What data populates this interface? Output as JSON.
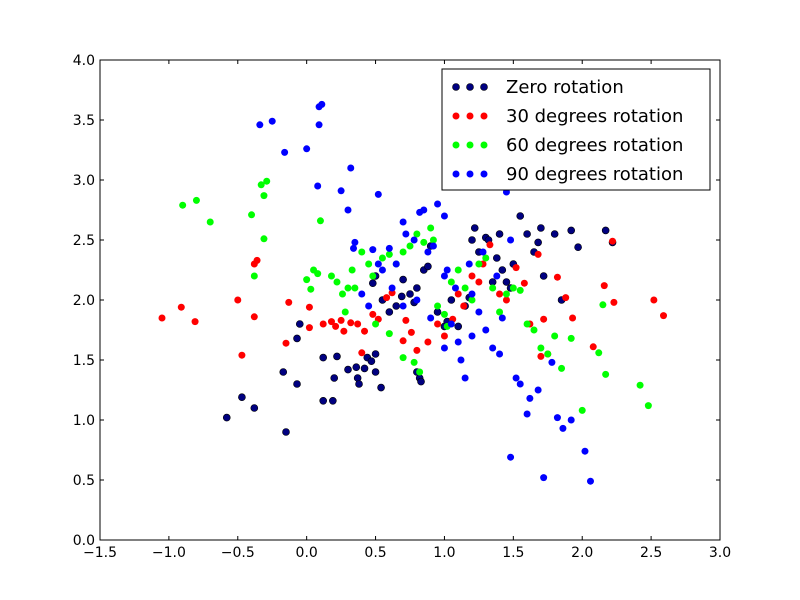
{
  "chart_data": {
    "type": "scatter",
    "title": "",
    "xlabel": "",
    "ylabel": "",
    "xlim": [
      -1.5,
      3.0
    ],
    "ylim": [
      0.0,
      4.0
    ],
    "xticks": [
      "−1.5",
      "−1.0",
      "−0.5",
      "0.0",
      "0.5",
      "1.0",
      "1.5",
      "2.0",
      "2.5",
      "3.0"
    ],
    "yticks": [
      "0.0",
      "0.5",
      "1.0",
      "1.5",
      "2.0",
      "2.5",
      "3.0",
      "3.5",
      "4.0"
    ],
    "grid": false,
    "legend_position": "top-right",
    "series": [
      {
        "name": "Zero rotation",
        "color": "#000080",
        "points": [
          [
            -0.58,
            1.02
          ],
          [
            -0.47,
            1.19
          ],
          [
            -0.38,
            1.1
          ],
          [
            -0.15,
            0.9
          ],
          [
            -0.17,
            1.4
          ],
          [
            -0.07,
            1.3
          ],
          [
            -0.07,
            1.68
          ],
          [
            -0.05,
            1.8
          ],
          [
            0.12,
            1.16
          ],
          [
            0.19,
            1.16
          ],
          [
            0.12,
            1.52
          ],
          [
            0.2,
            1.35
          ],
          [
            0.22,
            1.53
          ],
          [
            0.3,
            1.42
          ],
          [
            0.36,
            1.44
          ],
          [
            0.37,
            1.35
          ],
          [
            0.38,
            1.3
          ],
          [
            0.42,
            1.43
          ],
          [
            0.44,
            1.52
          ],
          [
            0.47,
            1.49
          ],
          [
            0.5,
            1.55
          ],
          [
            0.5,
            1.4
          ],
          [
            0.54,
            1.27
          ],
          [
            0.48,
            2.14
          ],
          [
            0.5,
            2.2
          ],
          [
            0.55,
            2.0
          ],
          [
            0.6,
            1.9
          ],
          [
            0.65,
            1.95
          ],
          [
            0.69,
            2.03
          ],
          [
            0.7,
            2.17
          ],
          [
            0.75,
            2.05
          ],
          [
            0.78,
            1.98
          ],
          [
            0.8,
            2.1
          ],
          [
            0.8,
            1.4
          ],
          [
            0.82,
            1.35
          ],
          [
            0.83,
            1.32
          ],
          [
            0.85,
            2.25
          ],
          [
            0.88,
            2.28
          ],
          [
            0.9,
            2.45
          ],
          [
            0.95,
            1.9
          ],
          [
            1.0,
            1.78
          ],
          [
            1.02,
            1.82
          ],
          [
            1.05,
            2.0
          ],
          [
            1.1,
            1.78
          ],
          [
            1.15,
            1.95
          ],
          [
            1.18,
            2.02
          ],
          [
            1.2,
            2.5
          ],
          [
            1.22,
            2.6
          ],
          [
            1.25,
            2.4
          ],
          [
            1.3,
            2.52
          ],
          [
            1.32,
            2.5
          ],
          [
            1.35,
            2.15
          ],
          [
            1.38,
            2.35
          ],
          [
            1.4,
            2.55
          ],
          [
            1.42,
            2.25
          ],
          [
            1.45,
            2.15
          ],
          [
            1.48,
            2.1
          ],
          [
            1.5,
            2.3
          ],
          [
            1.55,
            2.7
          ],
          [
            1.6,
            2.55
          ],
          [
            1.65,
            2.4
          ],
          [
            1.68,
            2.48
          ],
          [
            1.7,
            2.6
          ],
          [
            1.72,
            2.2
          ],
          [
            1.8,
            2.55
          ],
          [
            1.85,
            2.0
          ],
          [
            1.92,
            2.58
          ],
          [
            1.97,
            2.44
          ],
          [
            2.17,
            2.58
          ],
          [
            2.22,
            2.48
          ]
        ]
      },
      {
        "name": "30 degrees rotation",
        "color": "#ff0000",
        "points": [
          [
            -1.05,
            1.85
          ],
          [
            -0.91,
            1.94
          ],
          [
            -0.81,
            1.82
          ],
          [
            -0.5,
            2.0
          ],
          [
            -0.47,
            1.54
          ],
          [
            -0.38,
            1.86
          ],
          [
            -0.38,
            2.3
          ],
          [
            -0.36,
            2.33
          ],
          [
            -0.15,
            1.64
          ],
          [
            -0.13,
            1.98
          ],
          [
            0.02,
            1.94
          ],
          [
            0.02,
            1.77
          ],
          [
            0.12,
            1.8
          ],
          [
            0.18,
            1.82
          ],
          [
            0.21,
            1.78
          ],
          [
            0.25,
            1.83
          ],
          [
            0.27,
            1.74
          ],
          [
            0.32,
            1.81
          ],
          [
            0.37,
            1.8
          ],
          [
            0.4,
            1.56
          ],
          [
            0.42,
            1.74
          ],
          [
            0.48,
            1.88
          ],
          [
            0.52,
            1.84
          ],
          [
            0.58,
            2.02
          ],
          [
            0.62,
            2.06
          ],
          [
            0.7,
            1.66
          ],
          [
            0.72,
            1.83
          ],
          [
            0.76,
            1.73
          ],
          [
            0.8,
            1.58
          ],
          [
            0.88,
            1.65
          ],
          [
            0.95,
            1.8
          ],
          [
            1.0,
            1.7
          ],
          [
            1.06,
            1.84
          ],
          [
            1.1,
            2.05
          ],
          [
            1.14,
            1.95
          ],
          [
            1.2,
            2.2
          ],
          [
            1.25,
            2.15
          ],
          [
            1.28,
            2.3
          ],
          [
            1.33,
            2.46
          ],
          [
            1.4,
            2.05
          ],
          [
            1.45,
            2.0
          ],
          [
            1.52,
            2.27
          ],
          [
            1.58,
            2.14
          ],
          [
            1.62,
            1.8
          ],
          [
            1.68,
            2.38
          ],
          [
            1.72,
            1.84
          ],
          [
            1.75,
            1.55
          ],
          [
            1.82,
            2.19
          ],
          [
            1.88,
            2.02
          ],
          [
            1.93,
            1.85
          ],
          [
            2.08,
            1.61
          ],
          [
            2.16,
            2.12
          ],
          [
            2.22,
            2.49
          ],
          [
            2.23,
            1.98
          ],
          [
            2.52,
            2.0
          ],
          [
            2.59,
            1.87
          ],
          [
            1.7,
            1.53
          ]
        ]
      },
      {
        "name": "60 degrees rotation",
        "color": "#00ff00",
        "points": [
          [
            -0.9,
            2.79
          ],
          [
            -0.8,
            2.83
          ],
          [
            -0.7,
            2.65
          ],
          [
            -0.4,
            2.71
          ],
          [
            -0.33,
            2.96
          ],
          [
            -0.29,
            2.99
          ],
          [
            -0.31,
            2.87
          ],
          [
            -0.31,
            2.51
          ],
          [
            -0.38,
            2.2
          ],
          [
            0.0,
            2.17
          ],
          [
            0.03,
            2.09
          ],
          [
            0.05,
            2.25
          ],
          [
            0.08,
            2.22
          ],
          [
            0.1,
            2.66
          ],
          [
            0.18,
            2.2
          ],
          [
            0.22,
            2.15
          ],
          [
            0.26,
            2.05
          ],
          [
            0.28,
            1.9
          ],
          [
            0.3,
            2.1
          ],
          [
            0.33,
            2.25
          ],
          [
            0.35,
            2.1
          ],
          [
            0.4,
            2.4
          ],
          [
            0.45,
            2.3
          ],
          [
            0.48,
            2.2
          ],
          [
            0.55,
            2.35
          ],
          [
            0.6,
            2.38
          ],
          [
            0.65,
            2.3
          ],
          [
            0.7,
            2.4
          ],
          [
            0.75,
            2.45
          ],
          [
            0.8,
            2.55
          ],
          [
            0.85,
            2.48
          ],
          [
            0.9,
            2.6
          ],
          [
            0.92,
            2.5
          ],
          [
            0.95,
            1.95
          ],
          [
            1.0,
            1.88
          ],
          [
            1.02,
            1.78
          ],
          [
            1.05,
            2.15
          ],
          [
            1.1,
            2.25
          ],
          [
            1.15,
            2.1
          ],
          [
            1.2,
            2.0
          ],
          [
            1.25,
            2.3
          ],
          [
            1.3,
            2.35
          ],
          [
            1.35,
            2.1
          ],
          [
            1.4,
            1.9
          ],
          [
            1.45,
            2.05
          ],
          [
            1.5,
            2.1
          ],
          [
            1.55,
            2.08
          ],
          [
            1.6,
            1.8
          ],
          [
            1.65,
            1.75
          ],
          [
            1.7,
            1.6
          ],
          [
            1.75,
            1.55
          ],
          [
            1.8,
            1.7
          ],
          [
            1.85,
            1.43
          ],
          [
            1.92,
            1.68
          ],
          [
            2.0,
            1.08
          ],
          [
            2.12,
            1.56
          ],
          [
            2.15,
            1.96
          ],
          [
            2.17,
            1.38
          ],
          [
            2.42,
            1.29
          ],
          [
            2.48,
            1.12
          ],
          [
            0.7,
            1.52
          ],
          [
            0.78,
            1.48
          ],
          [
            0.82,
            1.4
          ],
          [
            0.6,
            1.72
          ],
          [
            0.5,
            1.8
          ]
        ]
      },
      {
        "name": "90 degrees rotation",
        "color": "#0000ff",
        "points": [
          [
            -0.34,
            3.46
          ],
          [
            -0.25,
            3.49
          ],
          [
            -0.16,
            3.23
          ],
          [
            0.0,
            3.26
          ],
          [
            0.09,
            3.61
          ],
          [
            0.11,
            3.63
          ],
          [
            0.09,
            3.46
          ],
          [
            0.08,
            2.95
          ],
          [
            0.25,
            2.91
          ],
          [
            0.32,
            3.1
          ],
          [
            0.3,
            2.75
          ],
          [
            0.34,
            2.43
          ],
          [
            0.35,
            2.48
          ],
          [
            0.52,
            2.88
          ],
          [
            0.48,
            2.42
          ],
          [
            0.52,
            2.3
          ],
          [
            0.55,
            2.25
          ],
          [
            0.6,
            2.43
          ],
          [
            0.62,
            2.1
          ],
          [
            0.65,
            2.3
          ],
          [
            0.7,
            2.65
          ],
          [
            0.72,
            2.55
          ],
          [
            0.78,
            2.5
          ],
          [
            0.82,
            2.73
          ],
          [
            0.85,
            2.75
          ],
          [
            0.88,
            2.4
          ],
          [
            0.92,
            2.45
          ],
          [
            0.95,
            2.8
          ],
          [
            1.0,
            2.7
          ],
          [
            1.02,
            2.25
          ],
          [
            1.05,
            1.8
          ],
          [
            1.1,
            1.65
          ],
          [
            1.12,
            1.5
          ],
          [
            1.15,
            1.35
          ],
          [
            1.2,
            2.05
          ],
          [
            1.25,
            1.9
          ],
          [
            1.3,
            1.75
          ],
          [
            1.35,
            1.6
          ],
          [
            1.4,
            1.55
          ],
          [
            1.42,
            1.85
          ],
          [
            1.45,
            2.9
          ],
          [
            1.48,
            0.69
          ],
          [
            1.52,
            1.35
          ],
          [
            1.55,
            1.3
          ],
          [
            1.6,
            1.05
          ],
          [
            1.62,
            1.18
          ],
          [
            1.68,
            1.25
          ],
          [
            1.72,
            0.52
          ],
          [
            1.78,
            1.48
          ],
          [
            1.82,
            1.02
          ],
          [
            1.86,
            0.93
          ],
          [
            1.92,
            1.0
          ],
          [
            2.02,
            0.74
          ],
          [
            2.06,
            0.49
          ],
          [
            1.0,
            2.2
          ],
          [
            1.08,
            2.1
          ],
          [
            1.18,
            2.3
          ],
          [
            1.28,
            2.4
          ],
          [
            1.38,
            2.2
          ],
          [
            1.48,
            2.5
          ],
          [
            0.4,
            2.05
          ],
          [
            0.45,
            1.95
          ],
          [
            0.7,
            1.95
          ],
          [
            0.8,
            2.0
          ],
          [
            0.9,
            1.85
          ],
          [
            1.0,
            1.6
          ],
          [
            1.2,
            1.7
          ]
        ]
      }
    ]
  }
}
